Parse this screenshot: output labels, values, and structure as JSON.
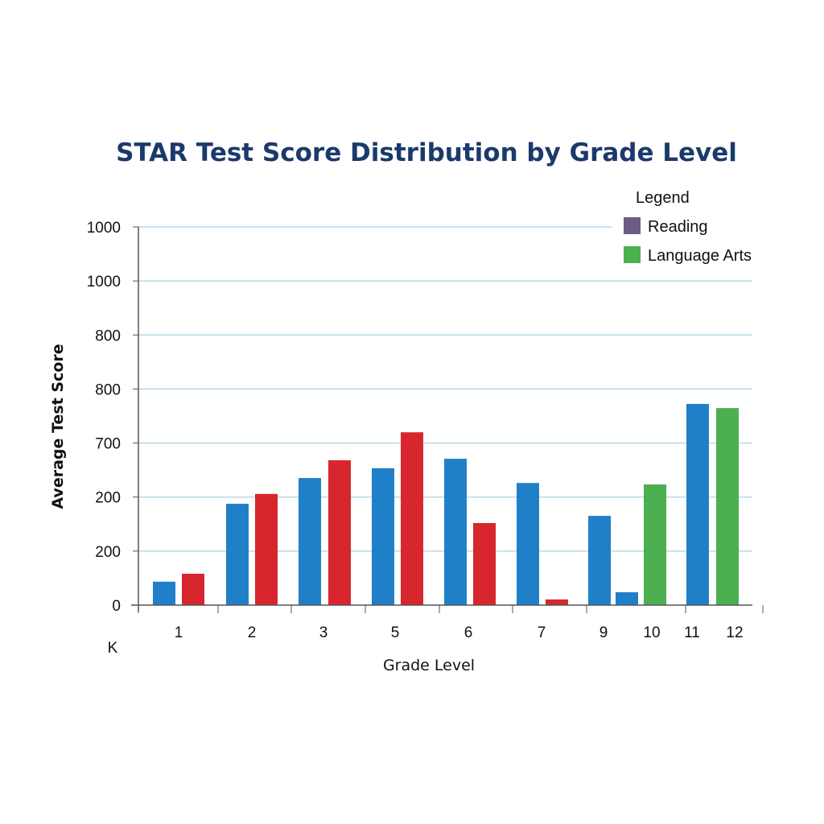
{
  "chart_data": {
    "type": "bar",
    "title": "STAR Test Score Distribution by Grade Level",
    "xlabel": "Grade Level",
    "ylabel": "Average Test Score",
    "y_tick_labels": [
      "0",
      "200",
      "200",
      "700",
      "800",
      "800",
      "1000",
      "1000"
    ],
    "ylim": [
      0,
      1000
    ],
    "grid": true,
    "x_tick_labels": [
      "1",
      "2",
      "3",
      "5",
      "6",
      "7",
      "9",
      "10",
      "11",
      "12"
    ],
    "x_extra_label": "K",
    "legend": {
      "title": "Legend",
      "position": "top-right",
      "entries": [
        {
          "name": "Reading",
          "color": "#6b5b85"
        },
        {
          "name": "Language Arts",
          "color": "#4caf50"
        }
      ]
    },
    "colors": {
      "blue": "#1f80c8",
      "red": "#d8262e",
      "green": "#4caf50",
      "grid": "#b9d9ea",
      "title": "#1b3a6b"
    },
    "bars": [
      {
        "group": "1",
        "color": "blue",
        "value": 62
      },
      {
        "group": "1",
        "color": "red",
        "value": 83
      },
      {
        "group": "2",
        "color": "blue",
        "value": 268
      },
      {
        "group": "2",
        "color": "red",
        "value": 294
      },
      {
        "group": "3",
        "color": "blue",
        "value": 336
      },
      {
        "group": "3",
        "color": "red",
        "value": 383
      },
      {
        "group": "5",
        "color": "blue",
        "value": 362
      },
      {
        "group": "5",
        "color": "red",
        "value": 457
      },
      {
        "group": "6",
        "color": "blue",
        "value": 387
      },
      {
        "group": "6",
        "color": "red",
        "value": 217
      },
      {
        "group": "7",
        "color": "blue",
        "value": 323
      },
      {
        "group": "7",
        "color": "red",
        "value": 15
      },
      {
        "group": "9",
        "color": "blue",
        "value": 236
      },
      {
        "group": "9",
        "color": "blue",
        "value": 34
      },
      {
        "group": "10",
        "color": "green",
        "value": 319
      },
      {
        "group": "11",
        "color": "blue",
        "value": 532
      },
      {
        "group": "12",
        "color": "green",
        "value": 521
      }
    ]
  }
}
